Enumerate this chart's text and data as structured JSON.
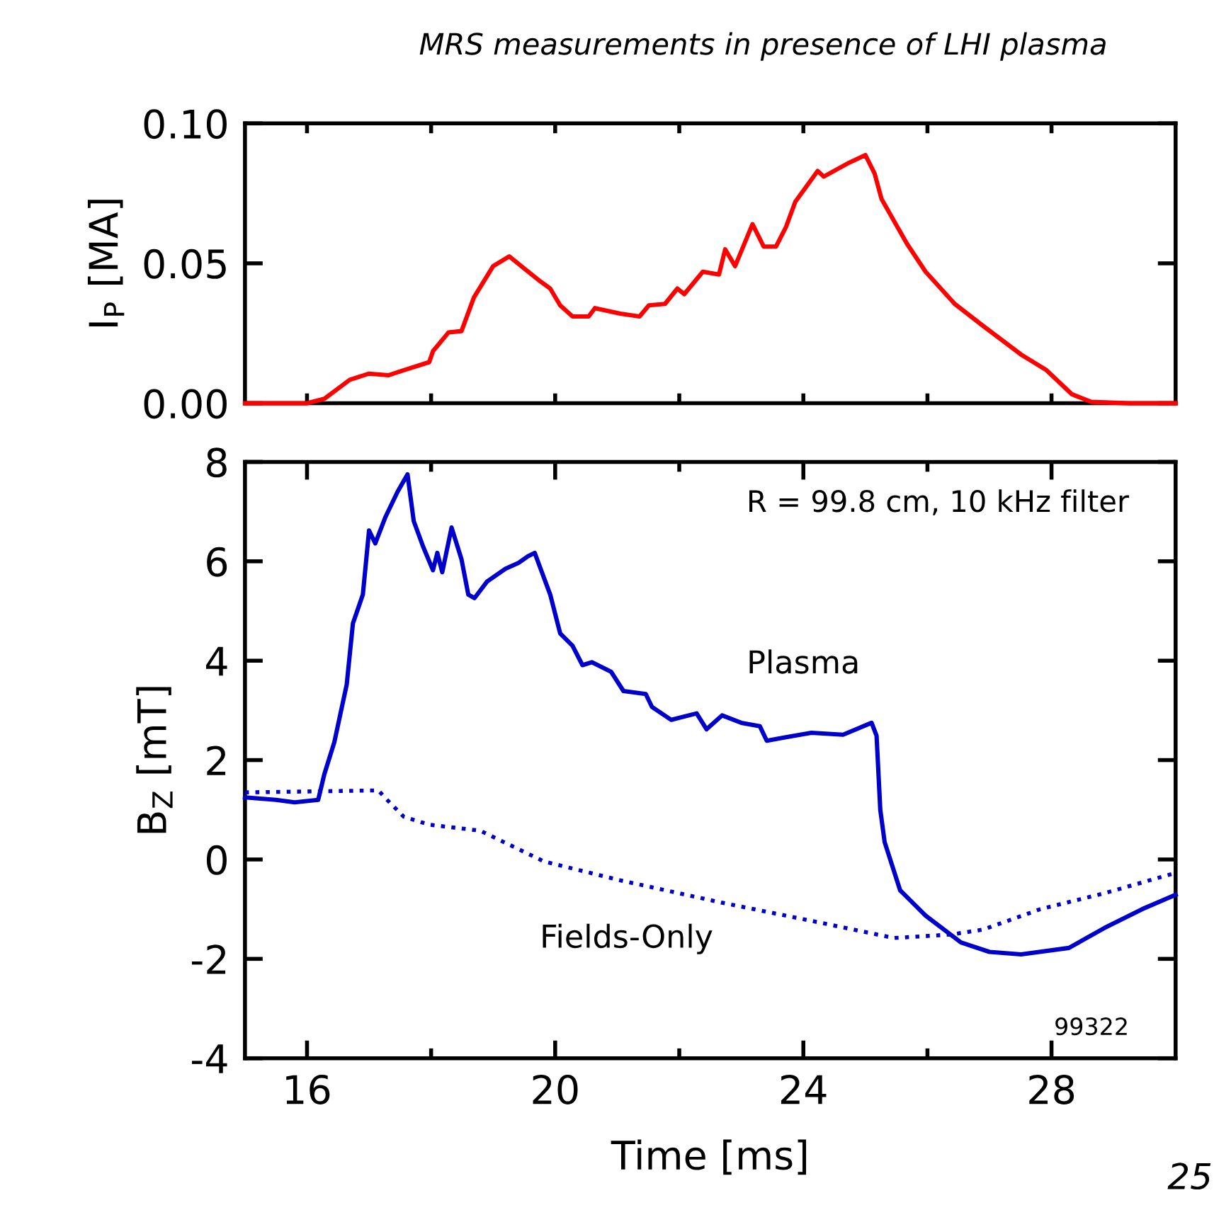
{
  "chart_data": [
    {
      "type": "line",
      "title": "MRS measurements in presence of LHI plasma",
      "ylabel": "I$_{P}$ [MA]",
      "xlim": [
        15,
        30
      ],
      "ylim": [
        0,
        0.1
      ],
      "xticks": [
        {
          "value": 16,
          "label": null
        },
        {
          "value": 18,
          "label": null
        },
        {
          "value": 20,
          "label": null
        },
        {
          "value": 22,
          "label": null
        },
        {
          "value": 24,
          "label": null
        },
        {
          "value": 26,
          "label": null
        },
        {
          "value": 28,
          "label": null
        }
      ],
      "yticks": [
        {
          "value": 0,
          "label": "0.00"
        },
        {
          "value": 0.05,
          "label": "0.05"
        },
        {
          "value": 0.1,
          "label": "0.10"
        }
      ],
      "tick_labels": "y",
      "grid": false,
      "legend": false,
      "marker": "none",
      "series": [
        {
          "color": "#ff0000",
          "line_style": "solid",
          "x": [
            15,
            16.0,
            16.28,
            16.69,
            17.0,
            17.31,
            17.56,
            17.97,
            18.03,
            18.28,
            18.49,
            18.69,
            19.0,
            19.26,
            19.51,
            19.77,
            19.92,
            20.08,
            20.28,
            20.54,
            20.64,
            21.05,
            21.36,
            21.51,
            21.77,
            21.97,
            22.08,
            22.38,
            22.64,
            22.74,
            22.9,
            23.18,
            23.36,
            23.56,
            23.72,
            23.87,
            24.23,
            24.33,
            24.74,
            25.0,
            25.15,
            25.26,
            25.67,
            25.97,
            26.44,
            26.9,
            27.51,
            27.92,
            28.33,
            28.64,
            29.26,
            30
          ],
          "values": [
            0,
            0,
            0.0016,
            0.0084,
            0.0106,
            0.01,
            0.0118,
            0.0147,
            0.0186,
            0.0253,
            0.0258,
            0.0378,
            0.049,
            0.0525,
            0.048,
            0.0434,
            0.041,
            0.035,
            0.031,
            0.031,
            0.034,
            0.032,
            0.031,
            0.035,
            0.0355,
            0.041,
            0.039,
            0.047,
            0.046,
            0.055,
            0.049,
            0.064,
            0.056,
            0.056,
            0.063,
            0.072,
            0.083,
            0.081,
            0.086,
            0.0887,
            0.082,
            0.073,
            0.057,
            0.047,
            0.0355,
            0.0276,
            0.0174,
            0.0118,
            0.0032,
            0.0005,
            0,
            0
          ]
        }
      ]
    },
    {
      "type": "line",
      "xlabel": "Time [ms]",
      "ylabel": "B$_{Z}$ [mT]",
      "xlim": [
        15,
        30
      ],
      "ylim": [
        -4,
        8
      ],
      "xticks": [
        16,
        {
          "value": 18,
          "label": null
        },
        20,
        {
          "value": 22,
          "label": null
        },
        24,
        {
          "value": 26,
          "label": null
        },
        28
      ],
      "yticks": [
        -4,
        -2,
        0,
        2,
        4,
        6,
        8
      ],
      "grid": false,
      "legend": false,
      "marker": "none",
      "annotations": [
        "R = 99.8 cm, 10 kHz filter",
        "99322",
        "25"
      ],
      "series": [
        {
          "name": "Plasma",
          "color": "#0000cc",
          "line_style": "solid",
          "x": [
            15,
            15.5,
            15.8,
            16.18,
            16.28,
            16.44,
            16.64,
            16.74,
            16.9,
            17.0,
            17.1,
            17.26,
            17.46,
            17.62,
            17.72,
            17.87,
            18.03,
            18.1,
            18.18,
            18.33,
            18.49,
            18.6,
            18.7,
            18.9,
            19.2,
            19.41,
            19.56,
            19.67,
            19.92,
            20.08,
            20.28,
            20.44,
            20.59,
            20.9,
            21.1,
            21.46,
            21.56,
            21.87,
            22.28,
            22.44,
            22.69,
            23.0,
            23.3,
            23.41,
            23.72,
            24.13,
            24.64,
            25.1,
            25.18,
            25.24,
            25.31,
            25.56,
            25.97,
            26.54,
            27.0,
            27.51,
            28.28,
            28.85,
            29.46,
            30
          ],
          "values": [
            1.25,
            1.2,
            1.15,
            1.2,
            1.72,
            2.36,
            3.52,
            4.75,
            5.33,
            6.62,
            6.36,
            6.88,
            7.4,
            7.75,
            6.81,
            6.3,
            5.82,
            6.17,
            5.78,
            6.68,
            6.04,
            5.33,
            5.26,
            5.59,
            5.85,
            5.97,
            6.1,
            6.17,
            5.33,
            4.55,
            4.3,
            3.91,
            3.97,
            3.78,
            3.39,
            3.33,
            3.07,
            2.81,
            2.94,
            2.62,
            2.9,
            2.75,
            2.68,
            2.39,
            2.46,
            2.55,
            2.51,
            2.75,
            2.49,
            1.0,
            0.35,
            -0.62,
            -1.13,
            -1.67,
            -1.86,
            -1.91,
            -1.78,
            -1.38,
            -1.0,
            -0.71
          ]
        },
        {
          "name": "Fields-Only",
          "color": "#0000cc",
          "line_style": "dotted",
          "x": [
            15,
            17.15,
            17.26,
            17.56,
            17.97,
            18.79,
            19.82,
            21.05,
            22.69,
            24.23,
            25.46,
            26.38,
            26.9,
            27.82,
            28.85,
            30
          ],
          "values": [
            1.35,
            1.39,
            1.24,
            0.86,
            0.7,
            0.58,
            -0.04,
            -0.42,
            -0.87,
            -1.26,
            -1.58,
            -1.51,
            -1.41,
            -1.0,
            -0.68,
            -0.27
          ]
        }
      ]
    }
  ]
}
